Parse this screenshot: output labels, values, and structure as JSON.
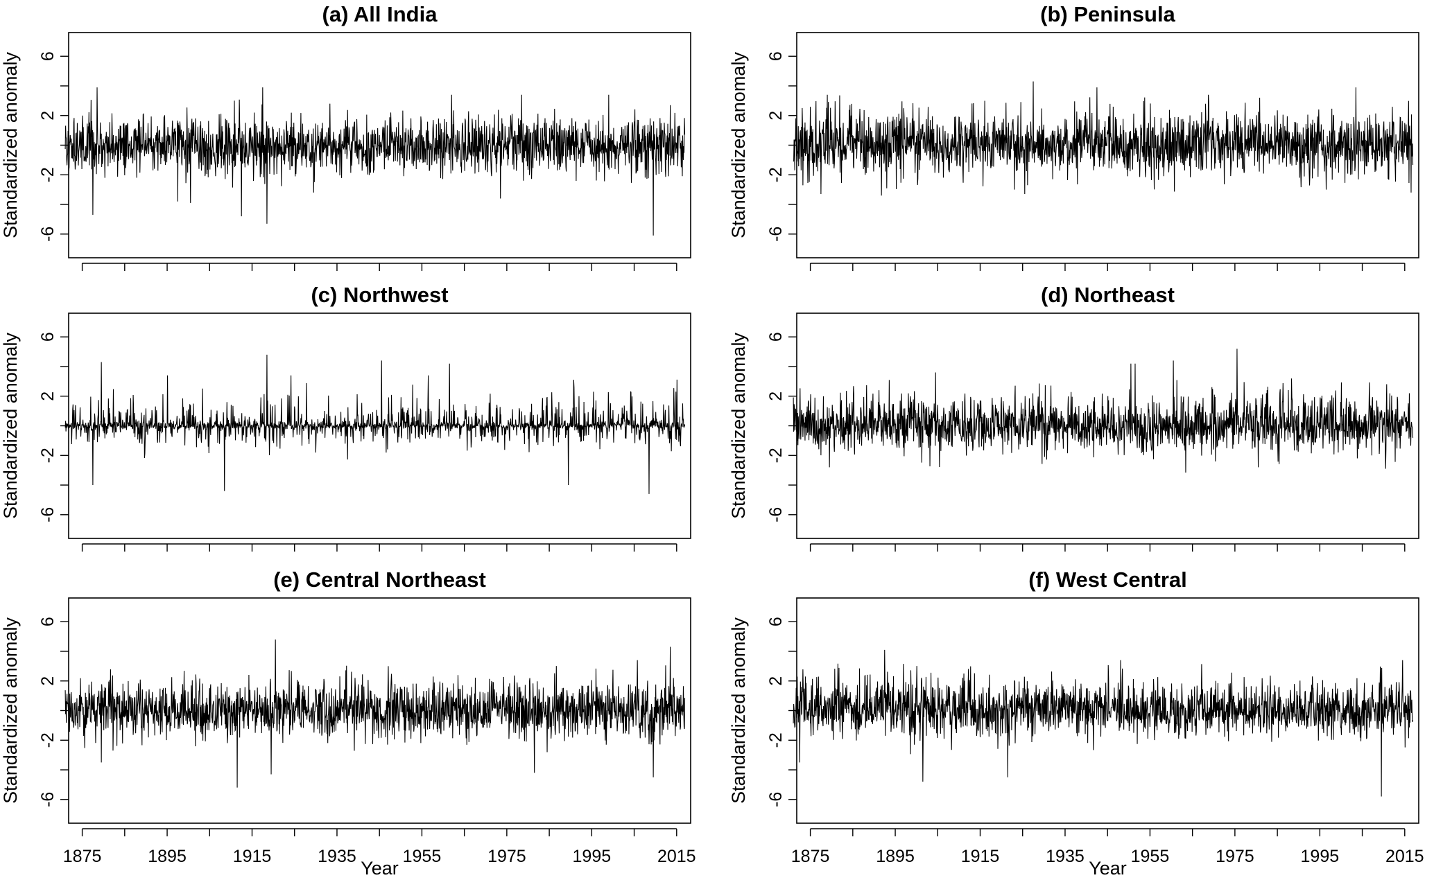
{
  "chart_data": [
    {
      "type": "line",
      "title": "(a) All India",
      "xlabel": "Year",
      "ylabel": "Standardized anomaly",
      "sd": 0.95,
      "skew": 0.1,
      "seed": 11,
      "extremes": [
        [
          1877,
          -4.7
        ],
        [
          1878,
          3.9
        ],
        [
          1897,
          -3.8
        ],
        [
          1900,
          -3.9
        ],
        [
          1912,
          -4.8
        ],
        [
          1917,
          3.9
        ],
        [
          1918,
          -5.3
        ],
        [
          1929,
          -3.2
        ],
        [
          1973,
          -3.6
        ],
        [
          2009,
          -6.1
        ],
        [
          2013,
          2.7
        ]
      ]
    },
    {
      "type": "line",
      "title": "(b) Peninsula",
      "xlabel": "Year",
      "ylabel": "Standardized anomaly",
      "sd": 1.0,
      "skew": 0.3,
      "seed": 23,
      "extremes": [
        [
          1877,
          -3.3
        ],
        [
          1927,
          4.3
        ],
        [
          1925,
          -3.3
        ],
        [
          1942,
          3.9
        ],
        [
          1996,
          -3.0
        ],
        [
          2003,
          3.9
        ],
        [
          2016,
          -3.2
        ]
      ]
    },
    {
      "type": "line",
      "title": "(c) Northwest",
      "xlabel": "Year",
      "ylabel": "Standardized anomaly",
      "sd": 0.7,
      "skew": 1.0,
      "seed": 37,
      "extremes": [
        [
          1877,
          -4.0
        ],
        [
          1879,
          4.3
        ],
        [
          1908,
          -4.4
        ],
        [
          1918,
          4.8
        ],
        [
          1945,
          4.4
        ],
        [
          1961,
          4.2
        ],
        [
          1989,
          -4.0
        ],
        [
          2008,
          -4.6
        ]
      ]
    },
    {
      "type": "line",
      "title": "(d) Northeast",
      "xlabel": "Year",
      "ylabel": "Standardized anomaly",
      "sd": 0.85,
      "skew": 0.4,
      "seed": 41,
      "extremes": [
        [
          1879,
          -2.8
        ],
        [
          1904,
          3.6
        ],
        [
          1950,
          4.2
        ],
        [
          1951,
          4.2
        ],
        [
          1960,
          4.4
        ],
        [
          1975,
          5.2
        ],
        [
          1980,
          -2.8
        ],
        [
          2010,
          -2.9
        ]
      ]
    },
    {
      "type": "line",
      "title": "(e) Central Northeast",
      "xlabel": "Year",
      "ylabel": "Standardized anomaly",
      "sd": 0.95,
      "skew": 0.2,
      "seed": 53,
      "extremes": [
        [
          1879,
          -3.5
        ],
        [
          1911,
          -5.2
        ],
        [
          1919,
          -4.3
        ],
        [
          1920,
          4.8
        ],
        [
          1981,
          -4.2
        ],
        [
          2009,
          -4.5
        ],
        [
          2013,
          4.3
        ]
      ]
    },
    {
      "type": "line",
      "title": "(f) West Central",
      "xlabel": "Year",
      "ylabel": "Standardized anomaly",
      "sd": 0.85,
      "skew": 0.5,
      "seed": 67,
      "extremes": [
        [
          1872,
          -3.5
        ],
        [
          1892,
          4.1
        ],
        [
          1901,
          -4.8
        ],
        [
          1921,
          -4.5
        ],
        [
          2009,
          -5.8
        ],
        [
          2014,
          3.4
        ]
      ]
    }
  ],
  "shared": {
    "x_range": [
      1871,
      2016
    ],
    "xlim": [
      1871.8,
      2018.3
    ],
    "ylim": [
      -7.6,
      7.6
    ],
    "yticks": [
      -6,
      -4,
      -2,
      0,
      2,
      4,
      6
    ],
    "ytick_labels": [
      "-6",
      "-2",
      "2",
      "6"
    ],
    "xticks": [
      1875,
      1885,
      1895,
      1905,
      1915,
      1925,
      1935,
      1945,
      1955,
      1965,
      1975,
      1985,
      1995,
      2005,
      2015
    ],
    "xtick_labels": [
      "1875",
      "1895",
      "1915",
      "1935",
      "1955",
      "1975",
      "1995",
      "2015"
    ],
    "resolution": "monthly",
    "grid": false,
    "line_color": "#000000"
  }
}
